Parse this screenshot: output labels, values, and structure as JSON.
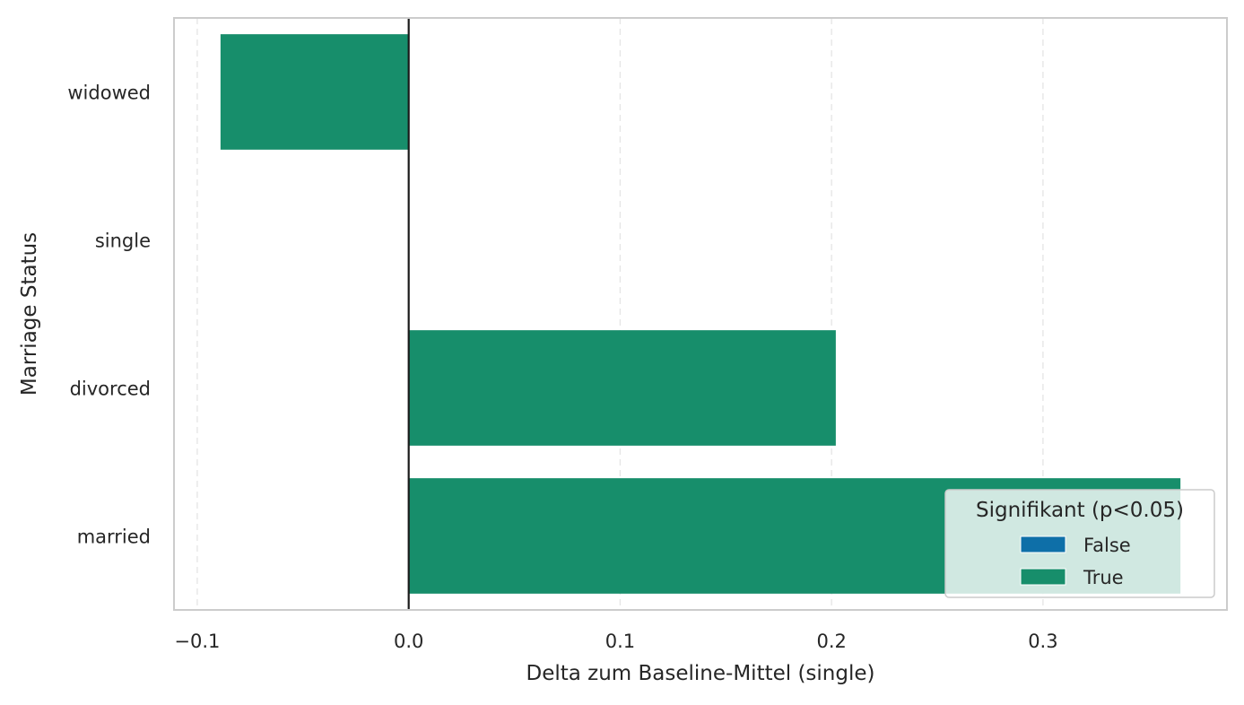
{
  "chart_data": {
    "type": "bar",
    "orientation": "horizontal",
    "categories": [
      "widowed",
      "single",
      "divorced",
      "married"
    ],
    "values": [
      -0.089,
      0.0,
      0.202,
      0.365
    ],
    "significant": [
      true,
      true,
      true,
      true
    ],
    "xlabel": "Delta zum Baseline-Mittel (single)",
    "ylabel": "Marriage Status",
    "xlim": [
      -0.111,
      0.387
    ],
    "xticks": [
      -0.1,
      0.0,
      0.1,
      0.2,
      0.3
    ],
    "xtick_labels": [
      "−0.1",
      "0.0",
      "0.1",
      "0.2",
      "0.3"
    ],
    "grid": "x dashed",
    "reference_line_x": 0.0,
    "legend": {
      "title": "Signifikant (p<0.05)",
      "placement": "lower-right",
      "entries": [
        {
          "label": "False",
          "color": "#0e6fa8"
        },
        {
          "label": "True",
          "color": "#178e6b"
        }
      ]
    },
    "colors": {
      "false": "#0e6fa8",
      "true": "#178e6b"
    }
  }
}
